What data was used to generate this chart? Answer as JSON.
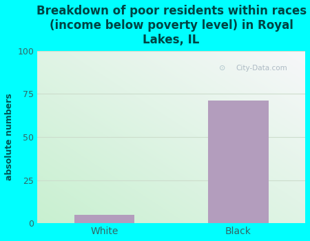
{
  "title": "Breakdown of poor residents within races\n(income below poverty level) in Royal\nLakes, IL",
  "categories": [
    "White",
    "Black"
  ],
  "values": [
    5,
    71
  ],
  "bar_color": "#b39dbd",
  "ylim": [
    0,
    100
  ],
  "yticks": [
    0,
    25,
    50,
    75,
    100
  ],
  "ylabel": "absolute numbers",
  "bg_color": "#00ffff",
  "plot_bg_topleft": "#c8f0d8",
  "plot_bg_topright": "#e8f8f8",
  "plot_bg_bottomleft": "#c8f0d0",
  "plot_bg_bottomright": "#e8f8f8",
  "grid_color": "#ccddcc",
  "title_color": "#004444",
  "axis_color": "#005555",
  "tick_color": "#336666",
  "watermark": "City-Data.com",
  "title_fontsize": 12,
  "ylabel_fontsize": 9
}
